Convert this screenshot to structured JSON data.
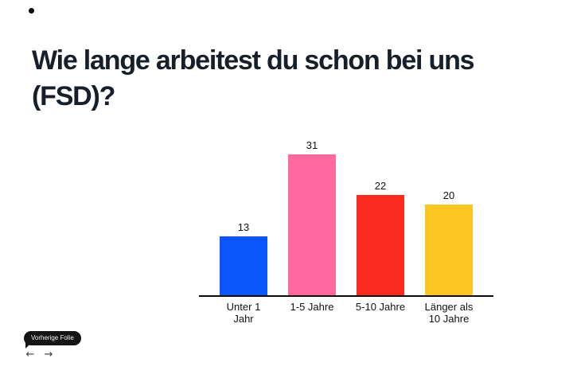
{
  "slide": {
    "title": "Wie lange arbeitest du schon bei uns (FSD)?",
    "title_color": "#161f2a",
    "background_color": "#ffffff"
  },
  "chart_data": {
    "type": "bar",
    "title": "Wie lange arbeitest du schon bei uns (FSD)?",
    "categories": [
      "Unter 1 Jahr",
      "1-5 Jahre",
      "5-10 Jahre",
      "Länger als 10 Jahre"
    ],
    "category_display": [
      "Unter 1\nJahr",
      "1-5 Jahre",
      "5-10 Jahre",
      "Länger als\n10 Jahre"
    ],
    "values": [
      13,
      31,
      22,
      20
    ],
    "value_labels": [
      "13",
      "31",
      "22",
      "20"
    ],
    "bar_colors": [
      "#0c55fb",
      "#ff689e",
      "#fb2a1f",
      "#fcc623"
    ],
    "xlabel": "",
    "ylabel": "",
    "ylim": [
      0,
      33
    ],
    "grid": false,
    "legend": false,
    "value_labels_shown": true,
    "axis_line_color": "#0a0a0a"
  },
  "controls": {
    "tooltip_label": "Vorherige Folie",
    "prev_icon": "←",
    "next_icon": "→"
  }
}
